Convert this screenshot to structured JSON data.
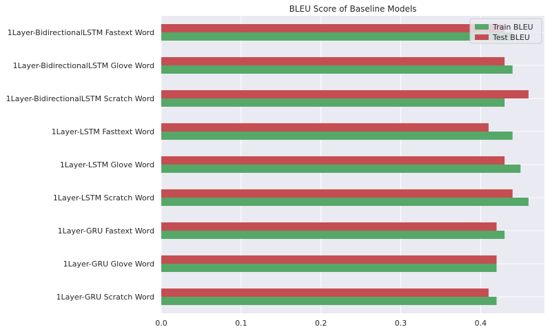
{
  "chart_data": {
    "type": "bar",
    "orientation": "horizontal",
    "title": "BLEU Score of Baseline Models",
    "xlabel": "",
    "ylabel": "",
    "xlim": [
      0,
      0.48
    ],
    "xticks": [
      0.0,
      0.1,
      0.2,
      0.3,
      0.4
    ],
    "xtick_labels": [
      "0.0",
      "0.1",
      "0.2",
      "0.3",
      "0.4"
    ],
    "grid": true,
    "legend_position": "top-right",
    "categories": [
      "1Layer-BidirectionalLSTM Fastext Word",
      "1Layer-BidirectionalLSTM Glove Word",
      "1Layer-BidirectionalLSTM Scratch Word",
      "1Layer-LSTM Fasttext Word",
      "1Layer-LSTM Glove Word",
      "1Layer-LSTM Scratch Word",
      "1Layer-GRU Fastext Word",
      "1Layer-GRU Glove Word",
      "1Layer-GRU Scratch Word"
    ],
    "series": [
      {
        "name": "Train BLEU",
        "color": "#55a868",
        "values": [
          0.44,
          0.44,
          0.43,
          0.44,
          0.45,
          0.46,
          0.43,
          0.42,
          0.42
        ]
      },
      {
        "name": "Test BLEU",
        "color": "#c44e52",
        "values": [
          0.43,
          0.43,
          0.46,
          0.41,
          0.43,
          0.44,
          0.42,
          0.42,
          0.41
        ]
      }
    ]
  },
  "colors": {
    "plot_background": "#eaeaf2",
    "grid": "#ffffff",
    "text": "#262626"
  }
}
